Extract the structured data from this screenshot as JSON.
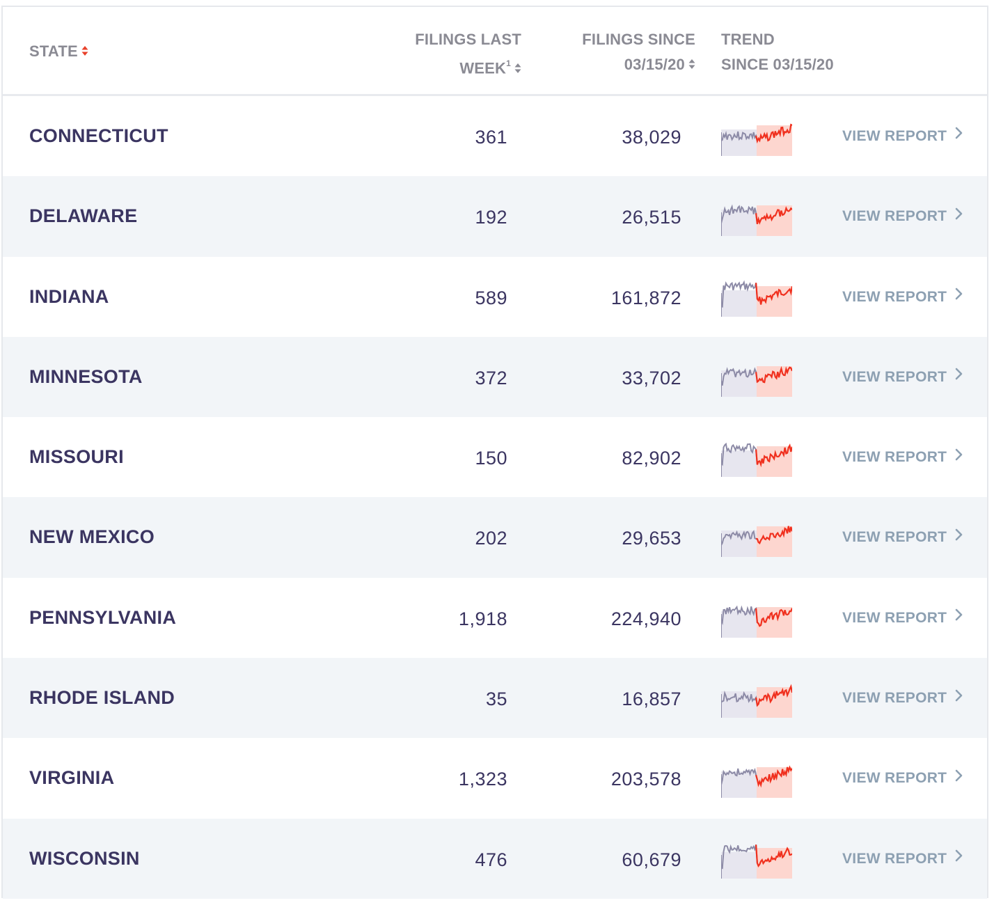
{
  "header": {
    "state": "STATE",
    "week_line1": "FILINGS LAST",
    "week_line2": "WEEK",
    "week_footnote": "1",
    "since_line1": "FILINGS SINCE",
    "since_line2": "03/15/20",
    "trend_line1": "TREND",
    "trend_line2": "SINCE 03/15/20"
  },
  "colors": {
    "text": "#3b3561",
    "header": "#8a8a93",
    "link": "#8da0b2",
    "trend_red": "#f0301e",
    "trend_grey": "#8c8aa6",
    "sort_active": "#e8402a"
  },
  "view_report_label": "VIEW REPORT",
  "rows": [
    {
      "state": "CONNECTICUT",
      "last_week": "361",
      "since": "38,029"
    },
    {
      "state": "DELAWARE",
      "last_week": "192",
      "since": "26,515"
    },
    {
      "state": "INDIANA",
      "last_week": "589",
      "since": "161,872"
    },
    {
      "state": "MINNESOTA",
      "last_week": "372",
      "since": "33,702"
    },
    {
      "state": "MISSOURI",
      "last_week": "150",
      "since": "82,902"
    },
    {
      "state": "NEW MEXICO",
      "last_week": "202",
      "since": "29,653"
    },
    {
      "state": "PENNSYLVANIA",
      "last_week": "1,918",
      "since": "224,940"
    },
    {
      "state": "RHODE ISLAND",
      "last_week": "35",
      "since": "16,857"
    },
    {
      "state": "VIRGINIA",
      "last_week": "1,323",
      "since": "203,578"
    },
    {
      "state": "WISCONSIN",
      "last_week": "476",
      "since": "60,679"
    }
  ]
}
